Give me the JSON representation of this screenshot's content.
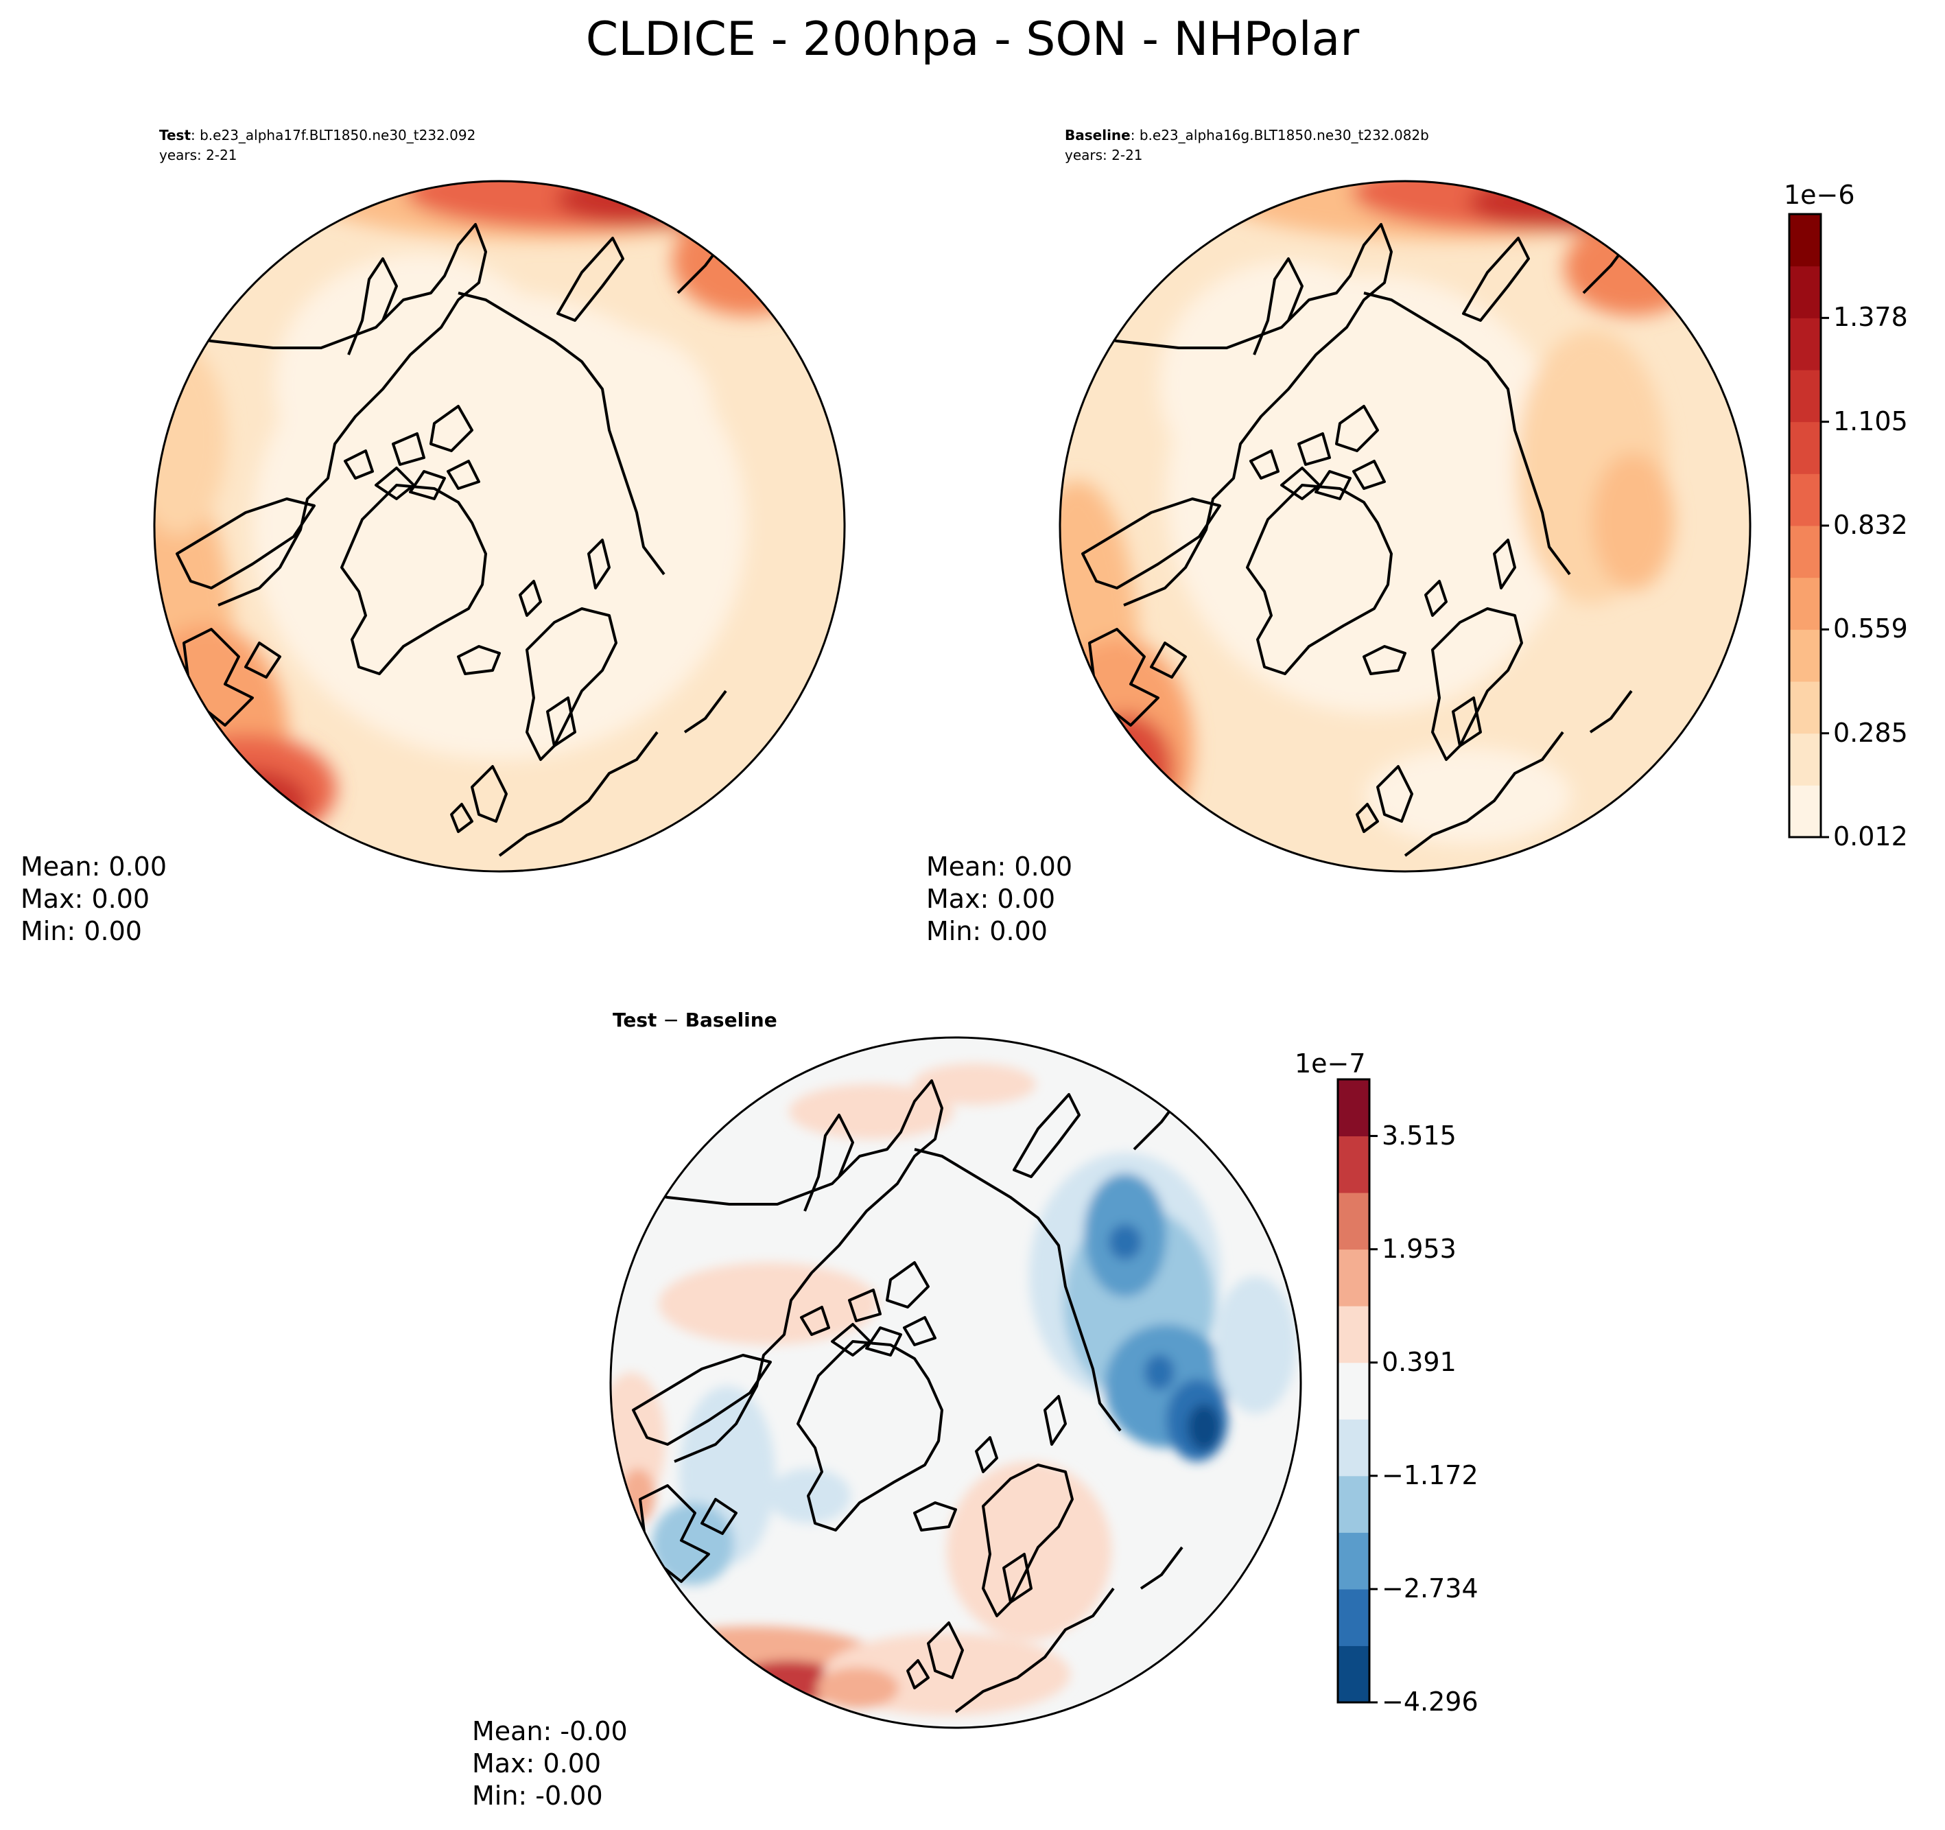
{
  "figure": {
    "title": "CLDICE - 200hpa - SON - NHPolar"
  },
  "panels": [
    {
      "id": "test",
      "label_bold": "Test",
      "label_text": ": b.e23_alpha17f.BLT1850.ne30_t232.092",
      "years": "years: 2-21",
      "stats": {
        "mean": "Mean:  0.00",
        "max": "Max:  0.00",
        "min": "Min:  0.00"
      },
      "colormap": "OrRd-like (Reds)"
    },
    {
      "id": "baseline",
      "label_bold": "Baseline",
      "label_text": ": b.e23_alpha16g.BLT1850.ne30_t232.082b",
      "years": "years: 2-21",
      "stats": {
        "mean": "Mean:  0.00",
        "max": "Max:  0.00",
        "min": "Min:  0.00"
      },
      "colormap": "OrRd-like (Reds)"
    },
    {
      "id": "diff",
      "label_bold": "Test",
      "label_text": " − ",
      "label_bold2": "Baseline",
      "stats": {
        "mean": "Mean: -0.00",
        "max": "Max:  0.00",
        "min": "Min: -0.00"
      },
      "colormap": "RdBu_r"
    }
  ],
  "colorbars": [
    {
      "id": "main",
      "exponent": "1e−6",
      "ticks": [
        "0.012",
        "0.285",
        "0.559",
        "0.832",
        "1.105",
        "1.378"
      ],
      "colors": [
        "#fef3e4",
        "#fde6c8",
        "#fdd4a8",
        "#fcbd88",
        "#f9a26d",
        "#f38559",
        "#ea6548",
        "#db4a39",
        "#c9322c",
        "#b31c20",
        "#9a0c14",
        "#7f0000"
      ]
    },
    {
      "id": "diff",
      "exponent": "1e−7",
      "ticks": [
        "−4.296",
        "−2.734",
        "−1.172",
        "0.391",
        "1.953",
        "3.515"
      ],
      "colors": [
        "#0c4a85",
        "#2b6fb1",
        "#5a9ccb",
        "#9cc8e1",
        "#d3e5f1",
        "#f5f6f6",
        "#fbdccc",
        "#f4ae91",
        "#e07a63",
        "#c43a3c",
        "#860d26"
      ]
    }
  ]
}
